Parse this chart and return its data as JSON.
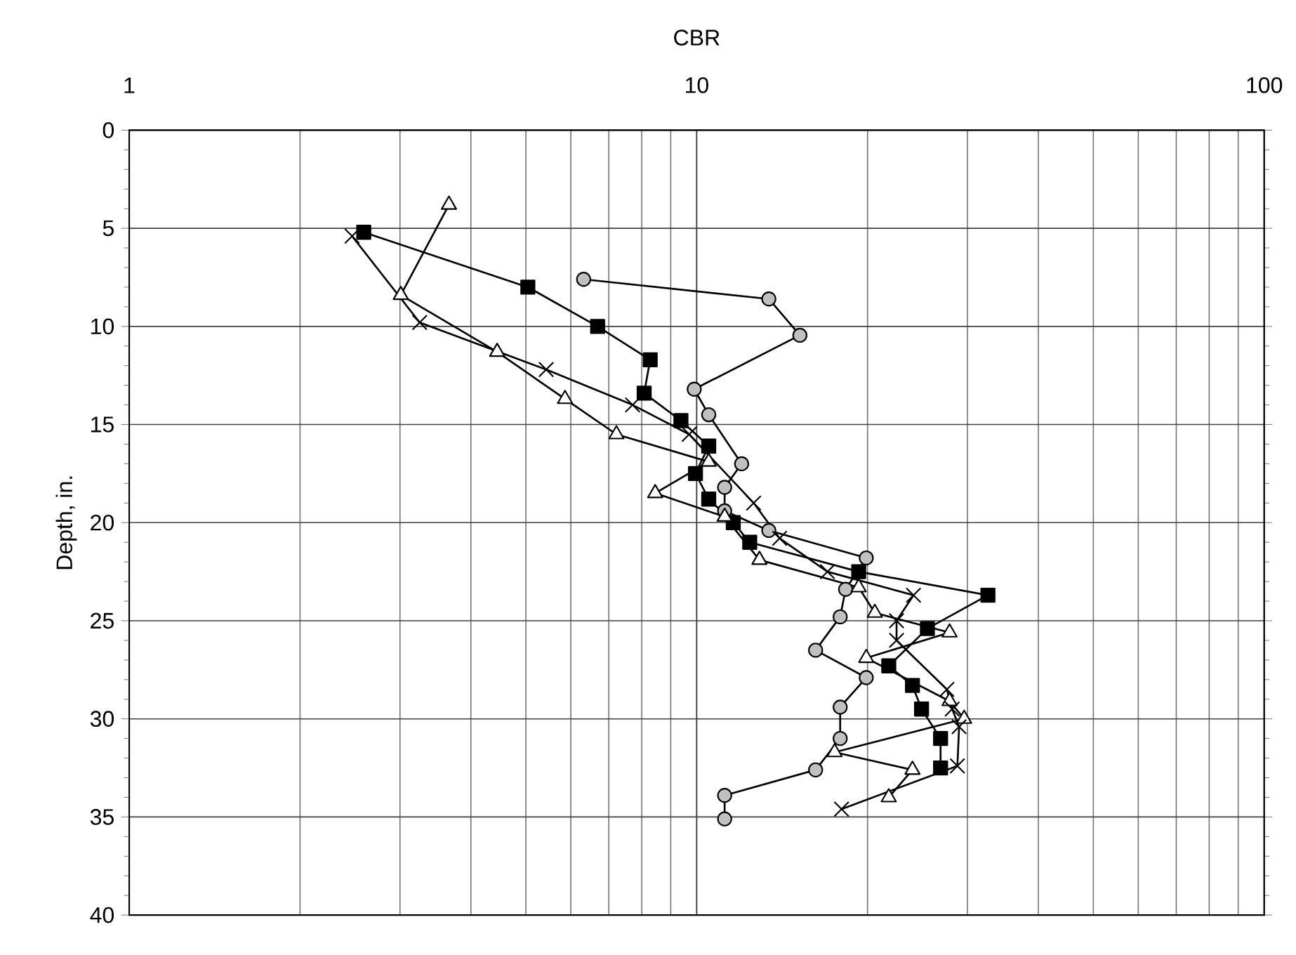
{
  "chart_data": {
    "type": "line",
    "xlabel": "CBR",
    "ylabel": "Depth, in.",
    "log": "x",
    "grid": true,
    "line_style": "solid",
    "xlim": [
      1,
      100
    ],
    "xticks": [
      1,
      10,
      100
    ],
    "ylim": [
      40,
      0
    ],
    "yticks": [
      0,
      5,
      10,
      15,
      20,
      25,
      30,
      35,
      40
    ],
    "series": [
      {
        "color": "#c0c0c0",
        "marker": "circle",
        "x": [
          null,
          6.32,
          13.4,
          15.2,
          9.9,
          10.5,
          12.0,
          11.2,
          11.2,
          13.4,
          19.9,
          18.3,
          17.9,
          16.2,
          19.9,
          17.9,
          17.9,
          16.2,
          11.2,
          11.2
        ],
        "values": [
          null,
          7.6,
          8.6,
          10.45,
          13.2,
          14.5,
          17.0,
          18.2,
          19.4,
          20.4,
          21.8,
          23.4,
          24.8,
          26.5,
          27.9,
          29.4,
          31.0,
          32.6,
          33.9,
          35.1
        ]
      },
      {
        "color": "#000000",
        "marker": "square",
        "x": [
          2.59,
          5.04,
          6.69,
          8.28,
          8.08,
          9.38,
          10.5,
          9.95,
          10.5,
          11.6,
          12.4,
          19.3,
          32.6,
          25.5,
          21.8,
          24.0,
          24.9,
          26.9,
          26.9
        ],
        "values": [
          5.2,
          8.0,
          10.0,
          11.7,
          13.4,
          14.8,
          16.1,
          17.5,
          18.8,
          20.0,
          21.0,
          22.5,
          23.7,
          25.4,
          27.3,
          28.3,
          29.5,
          31.0,
          32.5
        ]
      },
      {
        "color": "#ffffff",
        "marker": "triangle",
        "x": [
          3.66,
          3.01,
          4.45,
          5.86,
          7.22,
          10.5,
          8.45,
          11.2,
          12.9,
          19.3,
          20.6,
          27.9,
          19.9,
          27.9,
          29.6,
          17.5,
          24.0,
          21.8
        ],
        "values": [
          3.8,
          8.4,
          11.3,
          13.7,
          15.5,
          16.9,
          18.5,
          19.7,
          21.9,
          23.3,
          24.6,
          25.6,
          26.9,
          29.1,
          30.0,
          31.7,
          32.6,
          34.0
        ]
      },
      {
        "color": "#000000",
        "marker": "cross",
        "x": [
          2.47,
          3.25,
          5.43,
          7.71,
          9.7,
          12.6,
          14.0,
          17.0,
          24.1,
          22.5,
          22.5,
          27.6,
          28.2,
          29.0,
          28.8,
          18.0
        ],
        "values": [
          5.4,
          9.8,
          12.2,
          14.0,
          15.5,
          19.0,
          20.8,
          22.5,
          23.7,
          25.0,
          26.0,
          28.5,
          29.5,
          30.4,
          32.4,
          34.6
        ]
      }
    ]
  }
}
